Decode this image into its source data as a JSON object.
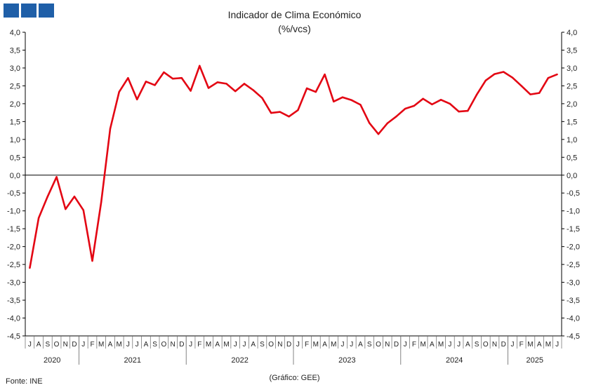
{
  "logo": {
    "name": "ine-logo"
  },
  "colors": {
    "line": "#e30613",
    "axis": "#000000",
    "logo": "#1f5fa8"
  },
  "source": "Fonte: INE",
  "credit": "(Gráfico: GEE)",
  "chart_data": {
    "type": "line",
    "title": "Indicador de Clima Económico",
    "subtitle": "(%/vcs)",
    "xlabel": "",
    "ylabel": "",
    "ylim": [
      -4.5,
      4.0
    ],
    "ytick_step": 0.5,
    "grid": false,
    "legend": "none",
    "month_labels": [
      "J",
      "A",
      "S",
      "O",
      "N",
      "D",
      "J",
      "F",
      "M",
      "A",
      "M",
      "J",
      "J",
      "A",
      "S",
      "O",
      "N",
      "D",
      "J",
      "F",
      "M",
      "A",
      "M",
      "J",
      "J",
      "A",
      "S",
      "O",
      "N",
      "D",
      "J",
      "F",
      "M",
      "A",
      "M",
      "J",
      "J",
      "A",
      "S",
      "O",
      "N",
      "D",
      "J",
      "F",
      "M",
      "A",
      "M",
      "J",
      "J",
      "A",
      "S",
      "O",
      "N",
      "D",
      "J",
      "F",
      "M",
      "A",
      "M",
      "J"
    ],
    "year_groups": [
      {
        "label": "2020",
        "months": 6
      },
      {
        "label": "2021",
        "months": 12
      },
      {
        "label": "2022",
        "months": 12
      },
      {
        "label": "2023",
        "months": 12
      },
      {
        "label": "2024",
        "months": 12
      },
      {
        "label": "2025",
        "months": 6
      }
    ],
    "series": [
      {
        "values": [
          -2.6,
          -1.2,
          -0.6,
          -0.05,
          -0.95,
          -0.6,
          -0.98,
          -2.4,
          -0.75,
          1.3,
          2.33,
          2.72,
          2.12,
          2.62,
          2.52,
          2.88,
          2.7,
          2.72,
          2.36,
          3.06,
          2.44,
          2.6,
          2.56,
          2.35,
          2.56,
          2.38,
          2.16,
          1.74,
          1.77,
          1.64,
          1.82,
          2.43,
          2.33,
          2.82,
          2.06,
          2.18,
          2.1,
          1.97,
          1.46,
          1.15,
          1.45,
          1.64,
          1.86,
          1.94,
          2.14,
          1.98,
          2.11,
          2.0,
          1.78,
          1.8,
          2.25,
          2.65,
          2.83,
          2.89,
          2.73,
          2.5,
          2.26,
          2.3,
          2.72,
          2.82
        ]
      }
    ]
  }
}
